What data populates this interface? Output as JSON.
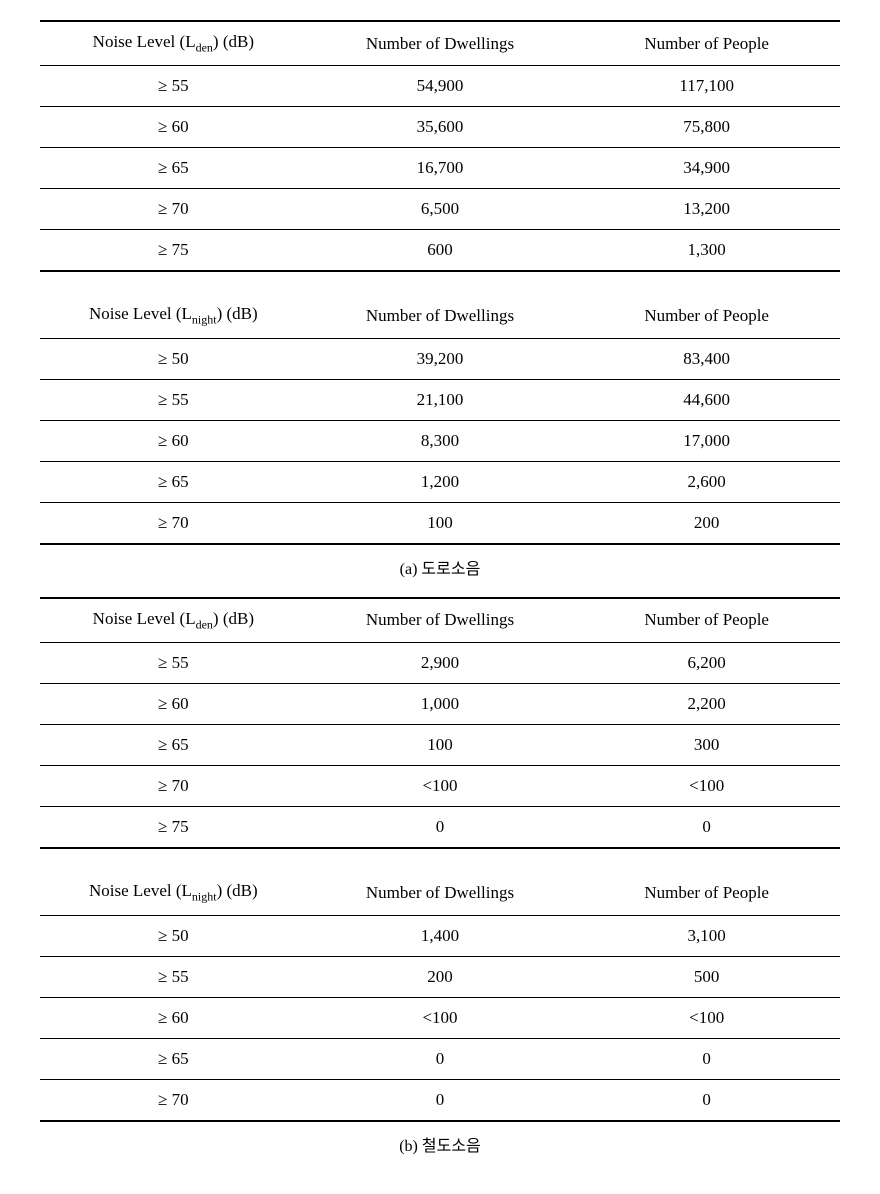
{
  "sections": [
    {
      "caption": "(a) 도로소음",
      "tables": [
        {
          "header": {
            "col1_prefix": "Noise Level (L",
            "col1_sub": "den",
            "col1_suffix": ") (dB)",
            "col2": "Number of Dwellings",
            "col3": "Number of People"
          },
          "rows": [
            {
              "level": "≥ 55",
              "dwellings": "54,900",
              "people": "117,100"
            },
            {
              "level": "≥ 60",
              "dwellings": "35,600",
              "people": "75,800"
            },
            {
              "level": "≥ 65",
              "dwellings": "16,700",
              "people": "34,900"
            },
            {
              "level": "≥ 70",
              "dwellings": "6,500",
              "people": "13,200"
            },
            {
              "level": "≥ 75",
              "dwellings": "600",
              "people": "1,300"
            }
          ]
        },
        {
          "header": {
            "col1_prefix": "Noise Level (L",
            "col1_sub": "night",
            "col1_suffix": ") (dB)",
            "col2": "Number of Dwellings",
            "col3": "Number of People"
          },
          "rows": [
            {
              "level": "≥ 50",
              "dwellings": "39,200",
              "people": "83,400"
            },
            {
              "level": "≥ 55",
              "dwellings": "21,100",
              "people": "44,600"
            },
            {
              "level": "≥ 60",
              "dwellings": "8,300",
              "people": "17,000"
            },
            {
              "level": "≥ 65",
              "dwellings": "1,200",
              "people": "2,600"
            },
            {
              "level": "≥ 70",
              "dwellings": "100",
              "people": "200"
            }
          ]
        }
      ]
    },
    {
      "caption": "(b) 철도소음",
      "tables": [
        {
          "header": {
            "col1_prefix": "Noise Level (L",
            "col1_sub": "den",
            "col1_suffix": ") (dB)",
            "col2": "Number of Dwellings",
            "col3": "Number of People"
          },
          "rows": [
            {
              "level": "≥ 55",
              "dwellings": "2,900",
              "people": "6,200"
            },
            {
              "level": "≥ 60",
              "dwellings": "1,000",
              "people": "2,200"
            },
            {
              "level": "≥ 65",
              "dwellings": "100",
              "people": "300"
            },
            {
              "level": "≥ 70",
              "dwellings": "<100",
              "people": "<100"
            },
            {
              "level": "≥ 75",
              "dwellings": "0",
              "people": "0"
            }
          ]
        },
        {
          "header": {
            "col1_prefix": "Noise Level (L",
            "col1_sub": "night",
            "col1_suffix": ") (dB)",
            "col2": "Number of Dwellings",
            "col3": "Number of People"
          },
          "rows": [
            {
              "level": "≥ 50",
              "dwellings": "1,400",
              "people": "3,100"
            },
            {
              "level": "≥ 55",
              "dwellings": "200",
              "people": "500"
            },
            {
              "level": "≥ 60",
              "dwellings": "<100",
              "people": "<100"
            },
            {
              "level": "≥ 65",
              "dwellings": "0",
              "people": "0"
            },
            {
              "level": "≥ 70",
              "dwellings": "0",
              "people": "0"
            }
          ]
        }
      ]
    }
  ]
}
